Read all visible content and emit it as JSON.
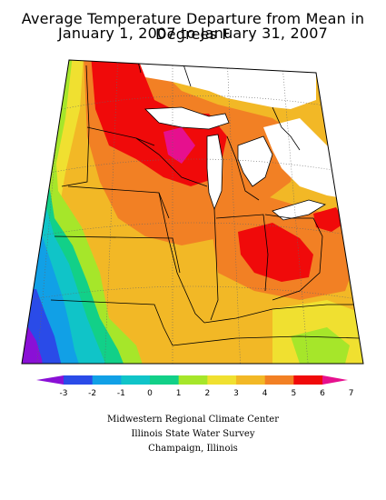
{
  "title": {
    "line1": "Average Temperature Departure from Mean in Degrees F",
    "line2": "January 1, 2007 to January 31, 2007"
  },
  "legend": {
    "ticks": [
      "-3",
      "-2",
      "-1",
      "0",
      "1",
      "2",
      "3",
      "4",
      "5",
      "6",
      "7"
    ],
    "colors": [
      "#8a10d6",
      "#2a4be8",
      "#11a0e6",
      "#10c4c8",
      "#12d088",
      "#a6e62a",
      "#f0e030",
      "#f2b826",
      "#f28024",
      "#f00a0a",
      "#e6108e"
    ]
  },
  "credits": {
    "line1": "Midwestern Regional Climate Center",
    "line2": "Illinois State Water Survey",
    "line3": "Champaign, Illinois"
  }
}
